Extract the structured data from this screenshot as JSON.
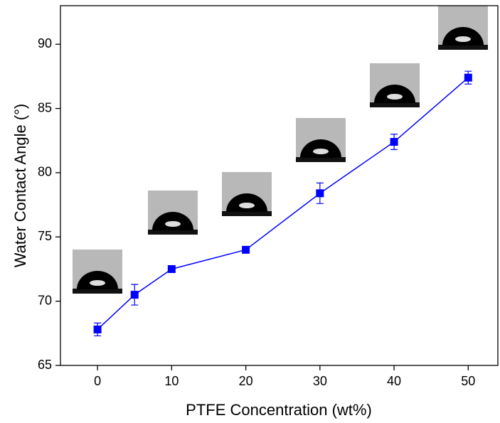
{
  "chart_data": {
    "type": "line",
    "x_label": "PTFE Concentration (wt%)",
    "y_label": "Water Contact Angle (°)",
    "x": [
      0,
      5,
      10,
      20,
      30,
      40,
      50
    ],
    "series": [
      {
        "color": "#0000ff",
        "values": [
          67.8,
          70.5,
          72.5,
          74.0,
          78.4,
          82.4,
          87.4
        ],
        "errors": [
          0.5,
          0.8,
          0.1,
          0.2,
          0.8,
          0.6,
          0.5
        ]
      }
    ],
    "xlim": [
      -5,
      54
    ],
    "xticks": [
      0,
      10,
      20,
      30,
      40,
      50
    ],
    "ylim": [
      65,
      93
    ],
    "yticks": [
      65,
      70,
      75,
      80,
      85,
      90
    ]
  }
}
